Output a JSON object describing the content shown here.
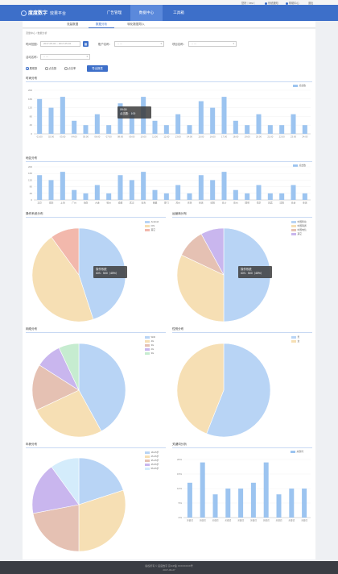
{
  "topbar": {
    "user": "您好｜test｜",
    "notice": "系统通知",
    "help": "帮助中心",
    "logout": "退出"
  },
  "header": {
    "brand": "度度数字",
    "brand_sub": "效果平台",
    "nav": [
      "广告管理",
      "数据中心",
      "工具箱"
    ],
    "active_nav": 1
  },
  "subnav": {
    "tabs": [
      "流量数据",
      "数据分析",
      "转化数据导入"
    ],
    "active": 1
  },
  "breadcrumb": "流量中心 / 数据分析",
  "filters": {
    "time_label": "时间范围：",
    "date_range": "2017-05-02 ~ 2017-05-02",
    "account_label": "账户名称：",
    "account_value": "-- ---",
    "project_label": "项目名称：",
    "project_value": "-- ---",
    "campaign_label": "活动名称：",
    "campaign_value": "-- ---",
    "radios": [
      "展现数",
      "点击数",
      "点击率"
    ],
    "radio_selected": 0,
    "export_label": "导出报表"
  },
  "hourly": {
    "title": "时间分布",
    "legend": "点击数",
    "tooltip": {
      "title": "09:00",
      "line": "点击数：100"
    },
    "chart_data": {
      "type": "bar",
      "categories": [
        "01:00",
        "02:00",
        "03:00",
        "04:00",
        "05:00",
        "06:00",
        "07:00",
        "08:00",
        "09:00",
        "10:00",
        "11:00",
        "12:00",
        "13:00",
        "14:00",
        "15:00",
        "16:00",
        "17:00",
        "18:00",
        "19:00",
        "20:00",
        "21:00",
        "22:00",
        "23:00",
        "24:00"
      ],
      "values": [
        160,
        120,
        170,
        60,
        40,
        90,
        40,
        140,
        100,
        170,
        60,
        40,
        90,
        40,
        150,
        120,
        170,
        60,
        40,
        90,
        40,
        40,
        90,
        40
      ],
      "ylim": [
        0,
        200
      ],
      "yticks": [
        0,
        40,
        80,
        120,
        160,
        200
      ],
      "color": "#9cc4f0"
    }
  },
  "region": {
    "title": "地区分布",
    "legend": "点击数",
    "chart_data": {
      "type": "bar",
      "categories": [
        "北京",
        "深圳",
        "上海",
        "广州",
        "海南",
        "大连",
        "杭州",
        "成都",
        "武汉",
        "青海",
        "西藏",
        "厦门",
        "苏州",
        "吉林",
        "重庆",
        "德阳",
        "长沙",
        "德州",
        "邯郸",
        "南京",
        "宜宾",
        "沈阳",
        "长治",
        "重庆"
      ],
      "values": [
        150,
        120,
        170,
        60,
        40,
        90,
        40,
        150,
        120,
        170,
        60,
        40,
        90,
        40,
        150,
        120,
        170,
        60,
        40,
        90,
        40,
        40,
        90,
        40
      ],
      "ylim": [
        0,
        200
      ],
      "yticks": [
        0,
        40,
        80,
        120,
        160,
        200
      ],
      "color": "#9cc4f0"
    }
  },
  "os": {
    "title": "操作系统分布",
    "tooltip": {
      "title": "操作系统",
      "line": "iOS：500（45%）"
    },
    "chart_data": {
      "type": "pie",
      "labels": [
        "Android",
        "iOS",
        "其它"
      ],
      "values": [
        45,
        45,
        10
      ],
      "colors": [
        "#b8d4f5",
        "#f6dfb4",
        "#f2b8ac"
      ]
    }
  },
  "carrier": {
    "title": "运营商分布",
    "tooltip": {
      "title": "操作系统",
      "line": "iOS：500（45%）"
    },
    "chart_data": {
      "type": "pie",
      "labels": [
        "中国移动",
        "中国联通",
        "中国电信",
        "其它"
      ],
      "values": [
        50,
        32,
        10,
        8
      ],
      "colors": [
        "#b8d4f5",
        "#f6dfb4",
        "#e5c1b3",
        "#c9b6ee"
      ]
    }
  },
  "network": {
    "title": "网络分布",
    "chart_data": {
      "type": "pie",
      "labels": [
        "WiFi",
        "4G",
        "3G",
        "2G",
        "3G"
      ],
      "values": [
        42,
        26,
        16,
        9,
        7
      ],
      "colors": [
        "#b8d4f5",
        "#f6dfb4",
        "#e5c1b3",
        "#c9b6ee",
        "#c6ecd0"
      ]
    }
  },
  "gender": {
    "title": "性别分布",
    "chart_data": {
      "type": "pie",
      "labels": [
        "男",
        "女"
      ],
      "values": [
        56,
        44
      ],
      "colors": [
        "#b8d4f5",
        "#f6dfb4"
      ]
    }
  },
  "age": {
    "title": "年龄分布",
    "chart_data": {
      "type": "pie",
      "labels": [
        "18-25岁",
        "25-35岁",
        "35-45岁",
        "45-55岁",
        "55-65岁"
      ],
      "values": [
        20,
        30,
        22,
        18,
        10
      ],
      "colors": [
        "#b8d4f5",
        "#f6dfb4",
        "#e5c1b3",
        "#c9b6ee",
        "#d4ecfb"
      ]
    }
  },
  "keywords": {
    "title": "关键词分析",
    "legend": "关键词",
    "chart_data": {
      "type": "bar",
      "categories": [
        "关键词",
        "关键词",
        "关键词",
        "关键词",
        "关键词",
        "关键词",
        "关键词",
        "关键词",
        "关键词",
        "关键词"
      ],
      "values": [
        12,
        19,
        8,
        10,
        10,
        12,
        19,
        8,
        10,
        10
      ],
      "ylim": [
        0,
        20
      ],
      "yticks": [
        0,
        5,
        10,
        15,
        20
      ],
      "ytick_labels": [
        "0%",
        "5%",
        "10%",
        "15%",
        "20%"
      ],
      "color": "#9cc4f0"
    }
  },
  "footer": {
    "line1": "版权所有 © 度度数字 京ICP备 XXXXXXXX号",
    "line2": "2017-09-27"
  }
}
